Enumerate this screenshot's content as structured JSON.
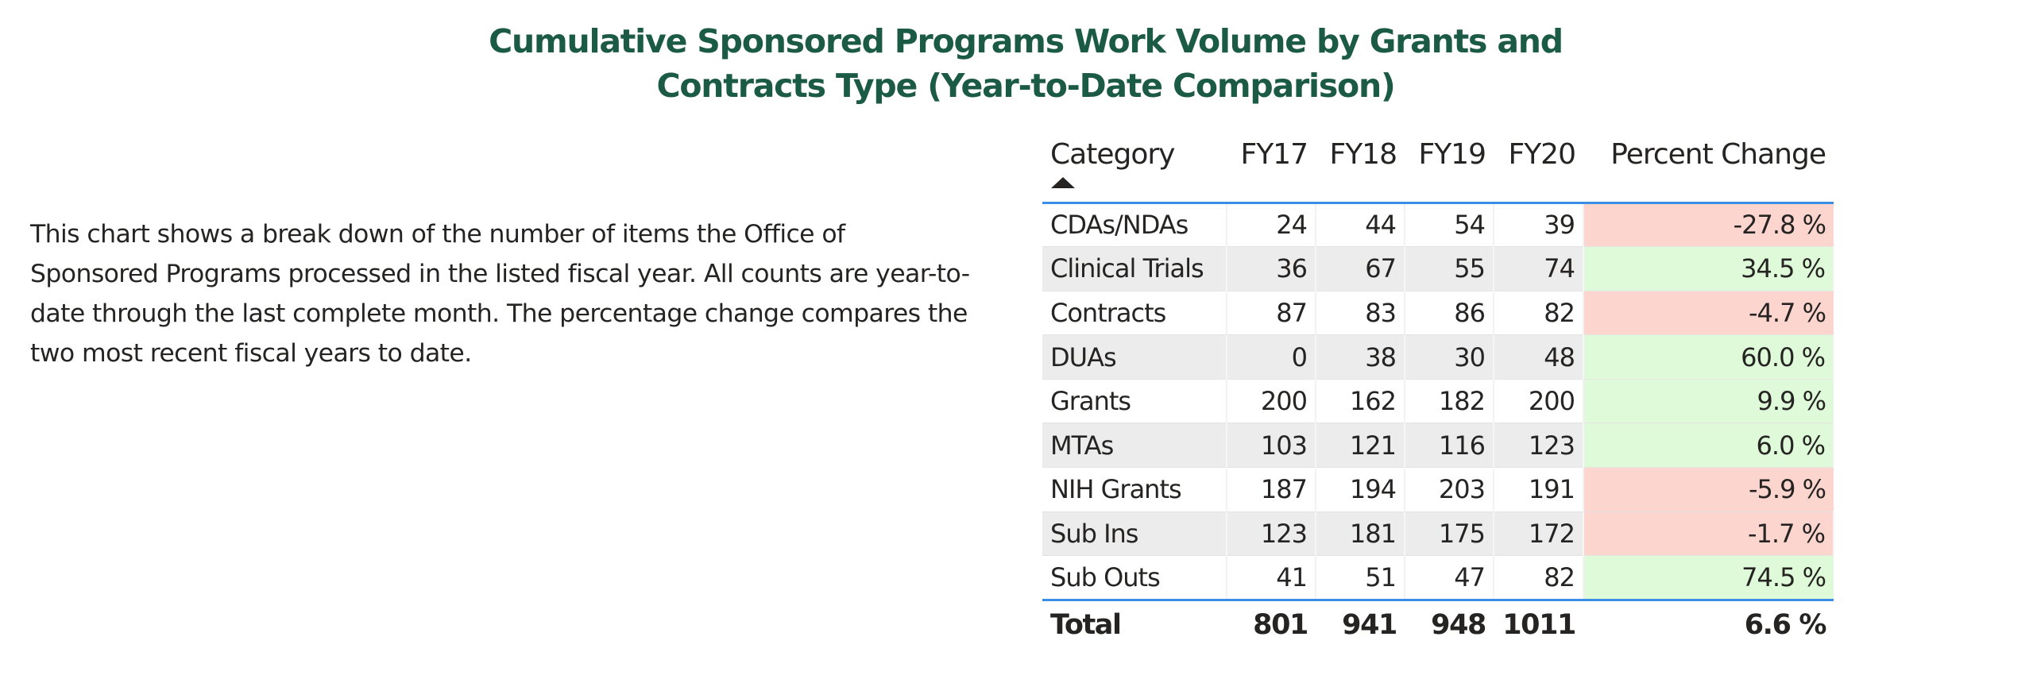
{
  "title": {
    "line1": "Cumulative Sponsored Programs Work Volume by Grants and",
    "line2": "Contracts Type (Year-to-Date Comparison)"
  },
  "description": "This chart shows a break down of the number of items the Office of Sponsored Programs processed in the listed fiscal year. All counts are year-to-date through the last complete month. The percentage change compares the two most recent fiscal years to date.",
  "colors": {
    "title": "#1b5a44",
    "header_rule": "#3a8ee6",
    "negative_bg": "#fdd5cf",
    "positive_bg": "#dffad8",
    "striped_row_bg": "#ececec"
  },
  "table": {
    "sort": {
      "column": "Category",
      "direction": "ascending",
      "icon": "sort-ascending-triangle"
    },
    "headers": {
      "category": "Category",
      "fy17": "FY17",
      "fy18": "FY18",
      "fy19": "FY19",
      "fy20": "FY20",
      "percent_change": "Percent Change"
    },
    "rows": [
      {
        "category": "CDAs/NDAs",
        "fy17": "24",
        "fy18": "44",
        "fy19": "54",
        "fy20": "39",
        "percent_change": "-27.8 %",
        "trend": "negative"
      },
      {
        "category": "Clinical Trials",
        "fy17": "36",
        "fy18": "67",
        "fy19": "55",
        "fy20": "74",
        "percent_change": "34.5 %",
        "trend": "positive"
      },
      {
        "category": "Contracts",
        "fy17": "87",
        "fy18": "83",
        "fy19": "86",
        "fy20": "82",
        "percent_change": "-4.7 %",
        "trend": "negative"
      },
      {
        "category": "DUAs",
        "fy17": "0",
        "fy18": "38",
        "fy19": "30",
        "fy20": "48",
        "percent_change": "60.0 %",
        "trend": "positive"
      },
      {
        "category": "Grants",
        "fy17": "200",
        "fy18": "162",
        "fy19": "182",
        "fy20": "200",
        "percent_change": "9.9 %",
        "trend": "positive"
      },
      {
        "category": "MTAs",
        "fy17": "103",
        "fy18": "121",
        "fy19": "116",
        "fy20": "123",
        "percent_change": "6.0 %",
        "trend": "positive"
      },
      {
        "category": "NIH Grants",
        "fy17": "187",
        "fy18": "194",
        "fy19": "203",
        "fy20": "191",
        "percent_change": "-5.9 %",
        "trend": "negative"
      },
      {
        "category": "Sub Ins",
        "fy17": "123",
        "fy18": "181",
        "fy19": "175",
        "fy20": "172",
        "percent_change": "-1.7 %",
        "trend": "negative"
      },
      {
        "category": "Sub Outs",
        "fy17": "41",
        "fy18": "51",
        "fy19": "47",
        "fy20": "82",
        "percent_change": "74.5 %",
        "trend": "positive"
      }
    ],
    "total": {
      "category": "Total",
      "fy17": "801",
      "fy18": "941",
      "fy19": "948",
      "fy20": "1011",
      "percent_change": "6.6 %"
    }
  }
}
